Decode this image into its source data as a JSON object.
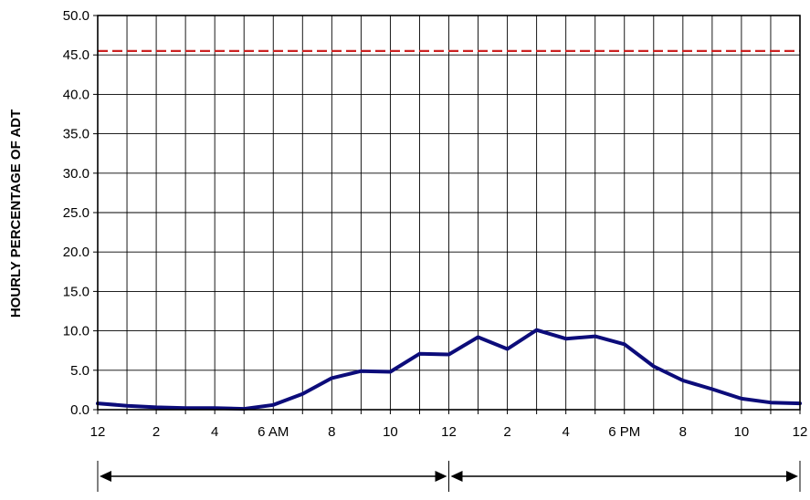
{
  "chart_data": {
    "type": "line",
    "title": "",
    "xlabel": "",
    "ylabel": "HOURLY PERCENTAGE OF ADT",
    "ylim": [
      0,
      50
    ],
    "yticks": [
      "0.0",
      "5.0",
      "10.0",
      "15.0",
      "20.0",
      "25.0",
      "30.0",
      "35.0",
      "40.0",
      "45.0",
      "50.0"
    ],
    "xlim": [
      0,
      24
    ],
    "xticks": [
      {
        "x": 0,
        "label": "12"
      },
      {
        "x": 2,
        "label": "2"
      },
      {
        "x": 4,
        "label": "4"
      },
      {
        "x": 6,
        "label": "6 AM"
      },
      {
        "x": 8,
        "label": "8"
      },
      {
        "x": 10,
        "label": "10"
      },
      {
        "x": 12,
        "label": "12"
      },
      {
        "x": 14,
        "label": "2"
      },
      {
        "x": 16,
        "label": "4"
      },
      {
        "x": 18,
        "label": "6 PM"
      },
      {
        "x": 20,
        "label": "8"
      },
      {
        "x": 22,
        "label": "10"
      },
      {
        "x": 24,
        "label": "12"
      }
    ],
    "grid": {
      "vertical_every_hour": true,
      "horizontal_every": 5
    },
    "series": [
      {
        "color": "#0c0c7a",
        "x": [
          0,
          1,
          2,
          3,
          4,
          5,
          6,
          7,
          8,
          9,
          10,
          11,
          12,
          13,
          14,
          15,
          16,
          17,
          18,
          19,
          20,
          21,
          22,
          23,
          24
        ],
        "values": [
          0.8,
          0.5,
          0.3,
          0.2,
          0.2,
          0.1,
          0.6,
          2.0,
          4.0,
          4.9,
          4.8,
          7.1,
          7.0,
          9.2,
          7.7,
          10.1,
          9.0,
          9.3,
          8.3,
          5.5,
          3.7,
          2.6,
          1.4,
          0.9,
          0.8
        ]
      }
    ],
    "reference_lines": [
      {
        "y": 45.5,
        "color": "#cc2222",
        "style": "dashed"
      }
    ],
    "annotations": {
      "bottom_arrows": [
        {
          "from": 0,
          "to": 12
        },
        {
          "from": 12,
          "to": 24
        }
      ]
    }
  }
}
